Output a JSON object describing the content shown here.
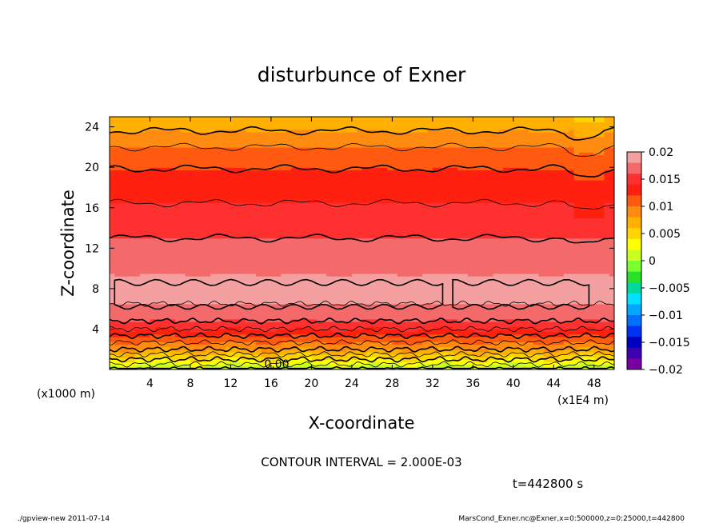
{
  "chart_data": {
    "type": "heatmap",
    "title": "disturbunce of Exner",
    "xlabel": "X-coordinate",
    "ylabel": "Z-coordinate",
    "x_unit_left": "(x1000 m)",
    "x_unit_right": "(x1E4 m)",
    "xlim": [
      0,
      50
    ],
    "ylim": [
      0,
      25
    ],
    "x_ticks": [
      4,
      8,
      12,
      16,
      20,
      24,
      28,
      32,
      36,
      40,
      44,
      48
    ],
    "y_ticks": [
      4,
      8,
      12,
      16,
      20,
      24
    ],
    "x_tick_labels": [
      "4",
      "8",
      "12",
      "16",
      "20",
      "24",
      "28",
      "32",
      "36",
      "40",
      "44",
      "48"
    ],
    "y_tick_labels": [
      "4",
      "8",
      "12",
      "16",
      "20",
      "24"
    ],
    "contour_interval_text": "CONTOUR INTERVAL = 2.000E-03",
    "contour_label": "0.00",
    "time_text": "t=442800 s",
    "colorbar": {
      "levels": [
        0.02,
        0.015,
        0.01,
        0.005,
        0,
        -0.005,
        -0.01,
        -0.015,
        -0.02
      ],
      "labels": [
        "0.02",
        "0.015",
        "0.01",
        "0.005",
        "0",
        "−0.005",
        "−0.01",
        "−0.015",
        "−0.02"
      ],
      "colors_top_to_bottom": [
        "#f4a0a0",
        "#f46a6a",
        "#ff3030",
        "#ff2010",
        "#ff5a10",
        "#ff8c10",
        "#ffb000",
        "#ffd400",
        "#ffff00",
        "#c8ff20",
        "#7cff30",
        "#28e028",
        "#00d8a0",
        "#00e0ff",
        "#00a8ff",
        "#0070ff",
        "#0030f0",
        "#0000c0",
        "#4000b0",
        "#7a00a0"
      ]
    },
    "vertical_profile": {
      "z": [
        0.0,
        1.0,
        2.0,
        3.0,
        4.0,
        5.0,
        6.0,
        7.5,
        9.0,
        11.0,
        13.0,
        15.0,
        17.0,
        19.0,
        21.0,
        23.0,
        25.0
      ],
      "value": [
        0.0,
        0.004,
        0.008,
        0.011,
        0.014,
        0.0165,
        0.0178,
        0.0184,
        0.0182,
        0.0172,
        0.016,
        0.0148,
        0.0137,
        0.0126,
        0.0112,
        0.0088,
        0.0062
      ]
    },
    "thick_contours": [
      {
        "value": 0.018,
        "note": "closed cells near Z 6-9, X 0-33 and X 34-48"
      },
      {
        "value": 0.014,
        "z_approx": 12.5
      },
      {
        "value": 0.012,
        "z_approx": 17.5
      },
      {
        "value": 0.01,
        "z_approx": 22.8
      }
    ]
  },
  "footer": {
    "left": "./gpview-new   2011-07-14",
    "right": "MarsCond_Exner.nc@Exner,x=0:500000,z=0:25000,t=442800"
  }
}
